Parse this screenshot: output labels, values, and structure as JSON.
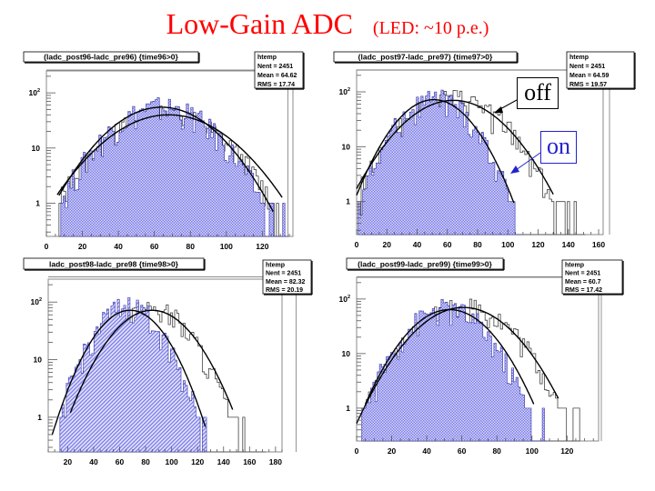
{
  "slide": {
    "title": "Low-Gain ADC",
    "subtitle": "(LED: ~10 p.e.)"
  },
  "annotations": {
    "off_label": "off",
    "on_label": "on",
    "on_color": "#2222cc"
  },
  "colors": {
    "title": "#ff0000",
    "fill": "#7b7be8",
    "fit": "#000000"
  },
  "chart_data": [
    {
      "type": "histogram",
      "title": "(ladc_post96-ladc_pre96) {time96>0}",
      "stats": {
        "name": "htemp",
        "nent_label": "Nent = 2451",
        "mean_label": "Mean  =  64.62",
        "rms_label": "RMS   =  17.74"
      },
      "yscale": "log",
      "xlim": [
        0,
        137
      ],
      "ylim": [
        0.25,
        250
      ],
      "xticks": [
        0,
        20,
        40,
        60,
        80,
        100,
        120
      ],
      "yticks": [
        {
          "v": 1,
          "label": "1"
        },
        {
          "v": 10,
          "label": "10"
        },
        {
          "v": 100,
          "label": "10",
          "sup": "2"
        }
      ],
      "hatch": "cross",
      "series": [
        {
          "name": "off",
          "mean": 66,
          "sigma": 22,
          "amp": 40,
          "range": [
            7,
            134
          ],
          "fit": {
            "mean": 68,
            "sigma": 24,
            "amp": 40,
            "range": [
              6,
              131
            ]
          }
        },
        {
          "name": "on",
          "mean": 64,
          "sigma": 20,
          "amp": 55,
          "range": [
            8,
            135
          ],
          "fit": {
            "mean": 64,
            "sigma": 21,
            "amp": 55,
            "range": [
              7,
              126
            ]
          }
        }
      ]
    },
    {
      "type": "histogram",
      "title": "(ladc_post97-ladc_pre97) {time97>0}",
      "stats": {
        "name": "htemp",
        "nent_label": "Nent = 2451",
        "mean_label": "Mean  =  64.59",
        "rms_label": "RMS   =  19.57"
      },
      "yscale": "log",
      "xlim": [
        0,
        163
      ],
      "ylim": [
        0.25,
        250
      ],
      "xticks": [
        0,
        20,
        40,
        60,
        80,
        100,
        120,
        140,
        160
      ],
      "yticks": [
        {
          "v": 1,
          "label": "1"
        },
        {
          "v": 10,
          "label": "10"
        },
        {
          "v": 100,
          "label": "10",
          "sup": "2"
        }
      ],
      "hatch": "cross",
      "series": [
        {
          "name": "off",
          "mean": 64,
          "sigma": 23,
          "amp": 70,
          "range": [
            3,
            150
          ],
          "fit": {
            "mean": 64,
            "sigma": 23.5,
            "amp": 70,
            "range": [
              0,
              130
            ]
          }
        },
        {
          "name": "on",
          "mean": 52,
          "sigma": 17,
          "amp": 75,
          "range": [
            1,
            109
          ],
          "fit": {
            "mean": 51,
            "sigma": 18,
            "amp": 72,
            "range": [
              0,
              104
            ]
          }
        }
      ]
    },
    {
      "type": "histogram",
      "title": "ladc_post98-ladc_pre98 {time98>0}",
      "stats": {
        "name": "htemp",
        "nent_label": "Nent = 2451",
        "mean_label": "Mean  =  82.32",
        "rms_label": "RMS   =  20.19"
      },
      "yscale": "log",
      "xlim": [
        5,
        185
      ],
      "ylim": [
        0.25,
        250
      ],
      "xticks": [
        20,
        40,
        60,
        80,
        100,
        120,
        140,
        160,
        180
      ],
      "yticks": [
        {
          "v": 1,
          "label": "1"
        },
        {
          "v": 10,
          "label": "10"
        },
        {
          "v": 100,
          "label": "10",
          "sup": "2"
        }
      ],
      "hatch": "diag",
      "series": [
        {
          "name": "off",
          "mean": 83,
          "sigma": 21,
          "amp": 75,
          "range": [
            14,
            172
          ],
          "fit": {
            "mean": 85,
            "sigma": 22,
            "amp": 72,
            "range": [
              22,
              147
            ]
          }
        },
        {
          "name": "on",
          "mean": 67,
          "sigma": 18,
          "amp": 80,
          "range": [
            14,
            126
          ],
          "fit": {
            "mean": 68,
            "sigma": 19,
            "amp": 72,
            "range": [
              8,
              126
            ]
          }
        }
      ]
    },
    {
      "type": "histogram",
      "title": "(ladc_post99-ladc_pre99) {time99>0}",
      "stats": {
        "name": "htemp",
        "nent_label": "Nent = 2451",
        "mean_label": "Mean  =   60.7",
        "rms_label": "RMS   =  17.42"
      },
      "yscale": "log",
      "xlim": [
        0,
        138
      ],
      "ylim": [
        0.25,
        250
      ],
      "xticks": [
        0,
        20,
        40,
        60,
        80,
        100,
        120
      ],
      "yticks": [
        {
          "v": 1,
          "label": "1"
        },
        {
          "v": 10,
          "label": "10"
        },
        {
          "v": 100,
          "label": "10",
          "sup": "2"
        }
      ],
      "hatch": "cross",
      "series": [
        {
          "name": "off",
          "mean": 61,
          "sigma": 19,
          "amp": 70,
          "range": [
            3,
            127
          ],
          "fit": {
            "mean": 61,
            "sigma": 19.5,
            "amp": 70,
            "range": [
              0,
              115
            ]
          }
        },
        {
          "name": "on",
          "mean": 51,
          "sigma": 16,
          "amp": 65,
          "range": [
            3,
            108
          ],
          "fit": {
            "mean": 53,
            "sigma": 17,
            "amp": 64,
            "range": [
              5,
              101
            ]
          }
        }
      ]
    }
  ]
}
